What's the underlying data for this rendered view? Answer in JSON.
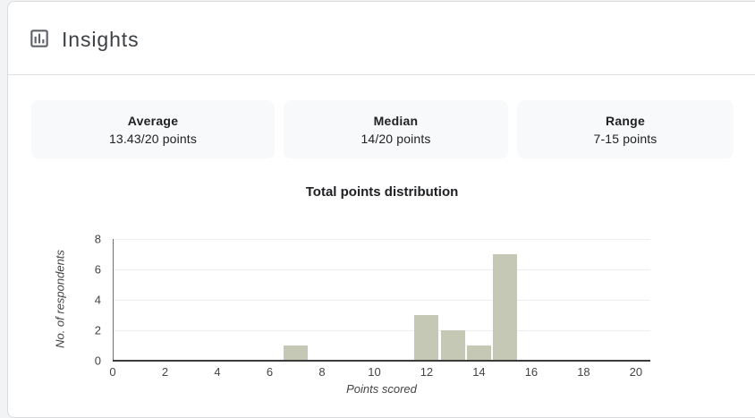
{
  "header": {
    "title": "Insights",
    "icon": "bar-chart-icon"
  },
  "stats": [
    {
      "label": "Average",
      "value": "13.43/20 points"
    },
    {
      "label": "Median",
      "value": "14/20 points"
    },
    {
      "label": "Range",
      "value": "7-15 points"
    }
  ],
  "chart_data": {
    "type": "bar",
    "title": "Total points distribution",
    "xlabel": "Points scored",
    "ylabel": "No. of respondents",
    "x": [
      7,
      12,
      13,
      14,
      15
    ],
    "values": [
      1,
      3,
      2,
      1,
      7
    ],
    "x_ticks": [
      0,
      2,
      4,
      6,
      8,
      10,
      12,
      14,
      16,
      18,
      20
    ],
    "y_ticks": [
      0,
      2,
      4,
      6,
      8
    ],
    "xlim": [
      0,
      20.55
    ],
    "ylim": [
      0,
      8
    ],
    "grid": true,
    "legend": "none",
    "bar_color": "#c4c8b4"
  },
  "colors": {
    "page_background": "#f1f3f4",
    "card_background": "#ffffff",
    "card_border": "#dadce0",
    "chip_background": "#f8f9fa",
    "bar": "#c4c8b4"
  }
}
